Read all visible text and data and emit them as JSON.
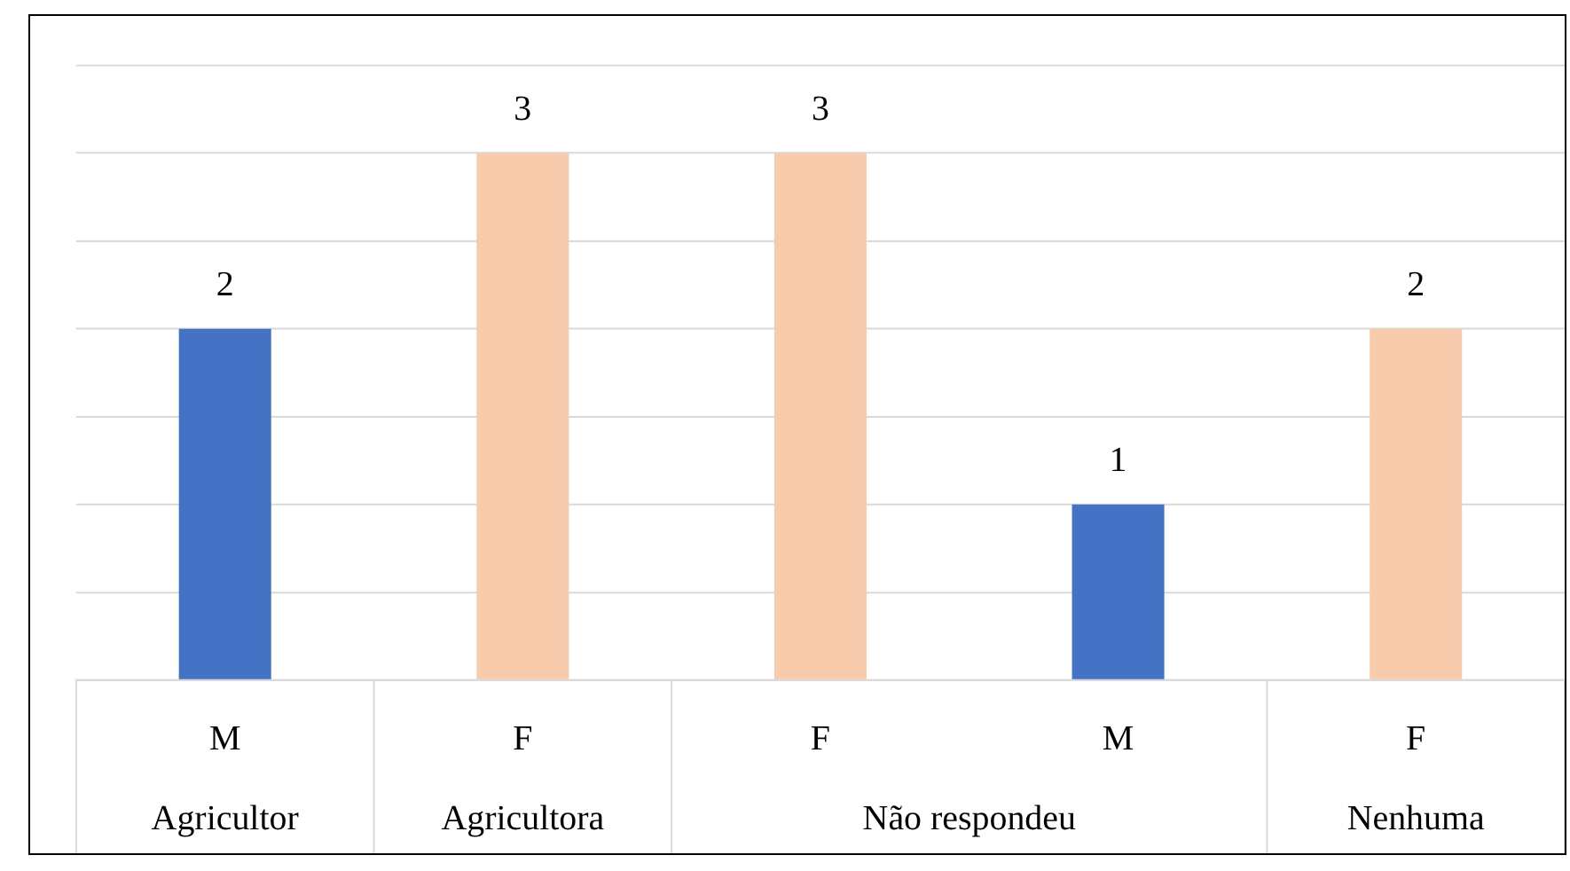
{
  "chart_data": {
    "type": "bar",
    "categories": [
      "M",
      "F",
      "F",
      "M",
      "F"
    ],
    "values": [
      2,
      3,
      3,
      1,
      2
    ],
    "colors": [
      "#4472c4",
      "#f8cbad",
      "#f8cbad",
      "#4472c4",
      "#f8cbad"
    ],
    "ylim": [
      0,
      3.5
    ],
    "yticks": [
      {
        "value": 0,
        "label": null
      },
      {
        "value": 0.5,
        "label": null
      },
      {
        "value": 1,
        "label": null
      },
      {
        "value": 1.5,
        "label": null
      },
      {
        "value": 2,
        "label": null
      },
      {
        "value": 2.5,
        "label": null
      },
      {
        "value": 3,
        "label": null
      },
      {
        "value": 3.5,
        "label": null
      }
    ],
    "grid": "y",
    "data_labels": true,
    "legend": false,
    "annotations": [
      "Agricultor",
      "Agricultora",
      "Não respondeu",
      "Nenhuma"
    ]
  }
}
